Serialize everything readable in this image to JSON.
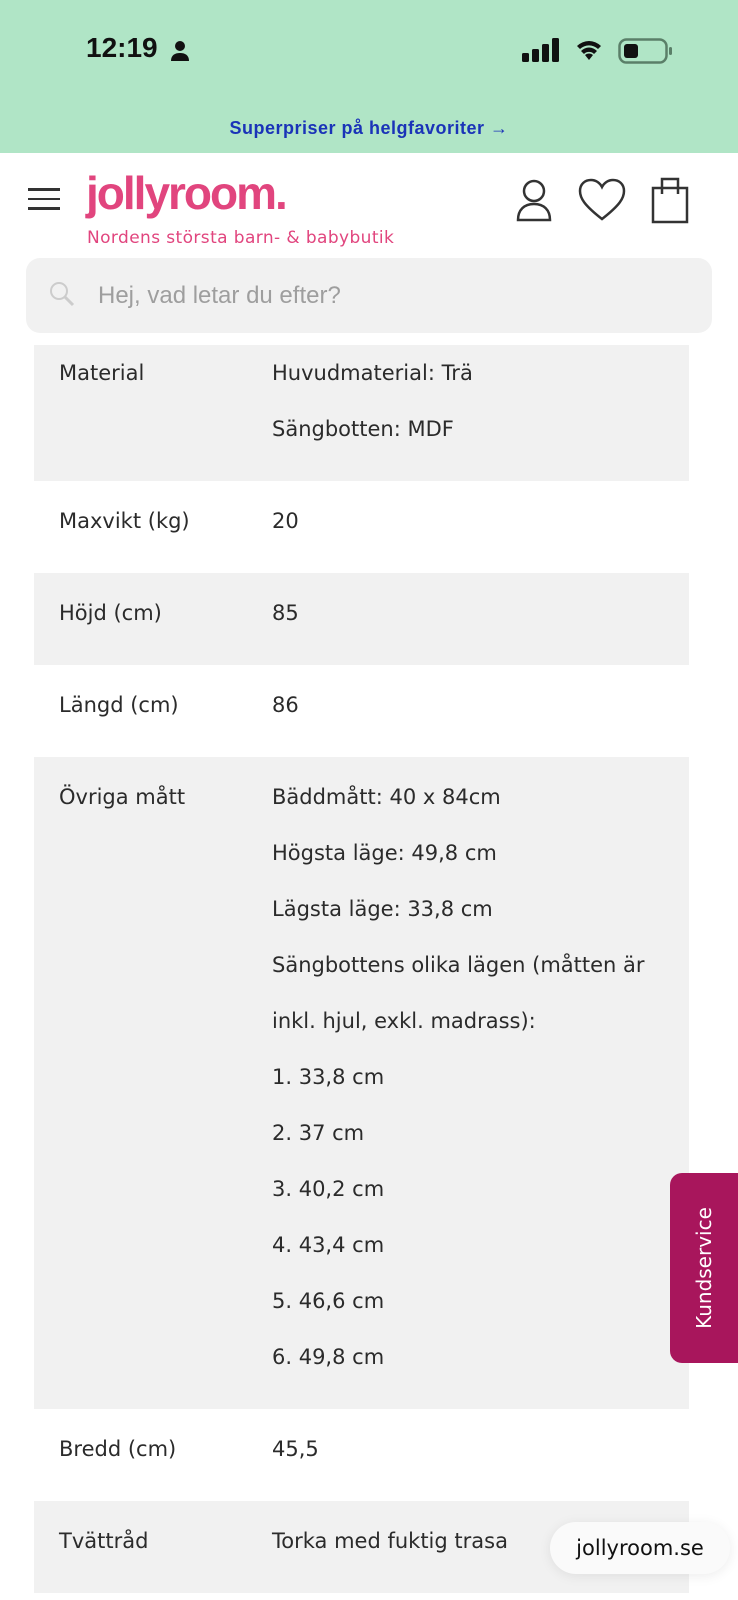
{
  "status_bar": {
    "time": "12:19"
  },
  "promo": {
    "text": "Superpriser på helgfavoriter →"
  },
  "header": {
    "logo": "jollyroom.",
    "tagline": "Nordens största barn- & babybutik"
  },
  "search": {
    "placeholder": "Hej, vad letar du efter?"
  },
  "specs": [
    {
      "label": "Material",
      "values": [
        "Huvudmaterial: Trä",
        "Sängbotten: MDF"
      ]
    },
    {
      "label": "Maxvikt (kg)",
      "values": [
        "20"
      ]
    },
    {
      "label": "Höjd (cm)",
      "values": [
        "85"
      ]
    },
    {
      "label": "Längd (cm)",
      "values": [
        "86"
      ]
    },
    {
      "label": "Övriga mått",
      "values": [
        "Bäddmått: 40 x 84cm",
        "Högsta läge: 49,8 cm",
        "Lägsta läge: 33,8 cm",
        "Sängbottens olika lägen (måtten är inkl. hjul, exkl. madrass):",
        "1. 33,8 cm",
        "2. 37 cm",
        "3. 40,2 cm",
        "4. 43,4 cm",
        "5. 46,6 cm",
        "6. 49,8 cm"
      ]
    },
    {
      "label": "Bredd (cm)",
      "values": [
        "45,5"
      ]
    },
    {
      "label": "Tvättråd",
      "values": [
        "Torka med fuktig trasa"
      ]
    }
  ],
  "customer_service": {
    "label": "Kundservice"
  },
  "browser": {
    "url": "jollyroom.se"
  },
  "colors": {
    "brand": "#e1457e",
    "promo_bg": "#b0e5c6",
    "promo_text": "#1a33b8",
    "service": "#a8165c"
  }
}
